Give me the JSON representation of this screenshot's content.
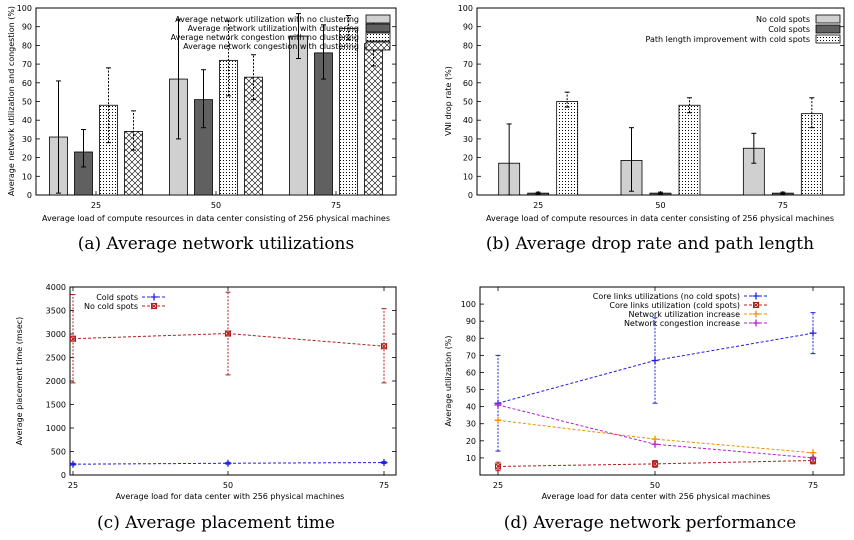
{
  "chart_data": [
    {
      "type": "bar",
      "caption": "(a) Average network utilizations",
      "categories": [
        "25",
        "50",
        "75"
      ],
      "xlabel": "Average load of compute resources in data center consisting of 256 physical machines",
      "ylabel": "Average network utilization and congestion (%)",
      "ylim": [
        0,
        100
      ],
      "yticks": [
        "0",
        "10",
        "20",
        "30",
        "40",
        "50",
        "60",
        "70",
        "80",
        "90",
        "100"
      ],
      "legend_position": "top-right",
      "series": [
        {
          "name": "Average network utilization with no clustering",
          "pattern": "solid-light-gray",
          "values": [
            31,
            62,
            85
          ],
          "err_low": [
            1,
            30,
            73
          ],
          "err_high": [
            61,
            94,
            97
          ]
        },
        {
          "name": "Average network utilization with clustering",
          "pattern": "solid-dark-gray",
          "values": [
            23,
            51,
            76
          ],
          "err_low": [
            15,
            36,
            62
          ],
          "err_high": [
            35,
            67,
            91
          ]
        },
        {
          "name": "Average network congestion with no clustering",
          "pattern": "dotted",
          "values": [
            48,
            72,
            89
          ],
          "err_low": [
            28,
            53,
            83
          ],
          "err_high": [
            68,
            93,
            96
          ]
        },
        {
          "name": "Average network congestion with clustering",
          "pattern": "crosshatch",
          "values": [
            34,
            63,
            81
          ],
          "err_low": [
            24,
            51,
            69
          ],
          "err_high": [
            45,
            75,
            93
          ]
        }
      ]
    },
    {
      "type": "bar",
      "caption": "(b) Average drop rate and path length",
      "categories": [
        "25",
        "50",
        "75"
      ],
      "xlabel": "Average load of compute resources in data center consisting of 256 physical machines",
      "ylabel": "VNI drop rate (%)",
      "ylim": [
        0,
        100
      ],
      "yticks": [
        "0",
        "10",
        "20",
        "30",
        "40",
        "50",
        "60",
        "70",
        "80",
        "90",
        "100"
      ],
      "legend_position": "top-right",
      "series": [
        {
          "name": "No cold spots",
          "pattern": "solid-light-gray",
          "values": [
            17,
            18.5,
            25
          ],
          "err_low": [
            0,
            2,
            17
          ],
          "err_high": [
            38,
            36,
            33
          ]
        },
        {
          "name": "Cold spots",
          "pattern": "solid-dark-gray",
          "values": [
            1,
            1,
            1
          ],
          "err_low": [
            0.5,
            0.5,
            0.5
          ],
          "err_high": [
            1.5,
            1.5,
            1.5
          ]
        },
        {
          "name": "Path length improvement with cold spots",
          "pattern": "dotted",
          "values": [
            50,
            48,
            43.5
          ],
          "err_low": [
            47,
            44,
            36
          ],
          "err_high": [
            55,
            52,
            52
          ]
        }
      ]
    },
    {
      "type": "line",
      "caption": "(c) Average placement time",
      "x": [
        "25",
        "50",
        "75"
      ],
      "xlabel": "Average load for data center with 256 physical machines",
      "ylabel": "Average placement time (msec)",
      "ylim": [
        0,
        4000
      ],
      "yticks": [
        "0",
        "500",
        "1000",
        "1500",
        "2000",
        "2500",
        "3000",
        "3500",
        "4000"
      ],
      "legend_position": "top-left",
      "series": [
        {
          "name": "Cold spots",
          "color": "#1f1fe0",
          "marker": "plus",
          "values": [
            230,
            250,
            265
          ],
          "err_low": [
            210,
            230,
            245
          ],
          "err_high": [
            250,
            270,
            285
          ]
        },
        {
          "name": "No cold spots",
          "color": "#b41c1c",
          "marker": "box-x",
          "values": [
            2900,
            3010,
            2740
          ],
          "err_low": [
            1960,
            2130,
            1960
          ],
          "err_high": [
            3840,
            3890,
            3540
          ]
        }
      ]
    },
    {
      "type": "line",
      "caption": "(d) Average network performance",
      "x": [
        "25",
        "50",
        "75"
      ],
      "xlabel": "Average load for data center with 256 physical machines",
      "ylabel": "Average utilization (%)",
      "ylim": [
        0,
        110
      ],
      "yticks": [
        "10",
        "20",
        "30",
        "40",
        "50",
        "60",
        "70",
        "80",
        "90",
        "100"
      ],
      "legend_position": "top-left",
      "series": [
        {
          "name": "Core links utilizations (no cold spots)",
          "color": "#1f1fe0",
          "marker": "plus",
          "values": [
            42,
            67,
            83
          ],
          "err_low": [
            14,
            42,
            71
          ],
          "err_high": [
            70,
            92,
            95
          ]
        },
        {
          "name": "Core links utilization (cold spots)",
          "color": "#b41c1c",
          "marker": "box-x",
          "values": [
            5,
            6.5,
            8.5
          ],
          "err_low": [
            2.5,
            4.5,
            6.5
          ],
          "err_high": [
            7.5,
            8.5,
            10.5
          ]
        },
        {
          "name": "Network utilization increase",
          "color": "#f08c00",
          "marker": "plus",
          "values": [
            32,
            21,
            13
          ],
          "err_low": null,
          "err_high": null
        },
        {
          "name": "Network congestion increase",
          "color": "#b41cd0",
          "marker": "plus",
          "values": [
            41,
            18,
            10
          ],
          "err_low": null,
          "err_high": null
        }
      ]
    }
  ]
}
